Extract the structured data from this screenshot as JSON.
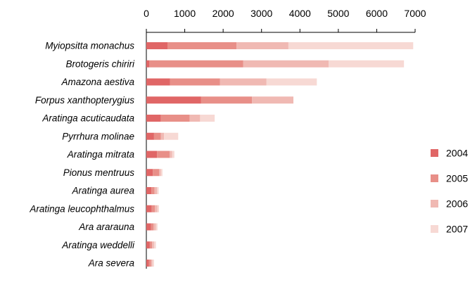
{
  "chart_data": {
    "type": "bar",
    "orientation": "horizontal",
    "stacked": true,
    "x_axis_position": "top",
    "xlim": [
      0,
      7000
    ],
    "x_ticks": [
      0,
      1000,
      2000,
      3000,
      4000,
      5000,
      6000,
      7000
    ],
    "x_tick_labels": [
      "0",
      "1000",
      "2000",
      "3000",
      "4000",
      "5000",
      "6000",
      "7000"
    ],
    "grid": false,
    "legend_position": "right",
    "categories": [
      "Myiopsitta monachus",
      "Brotogeris chiriri",
      "Amazona aestiva",
      "Forpus xanthopterygius",
      "Aratinga acuticaudata",
      "Pyrrhura molinae",
      "Aratinga mitrata",
      "Pionus mentruus",
      "Aratinga aurea",
      "Aratinga leucophthalmus",
      "Ara ararauna",
      "Aratinga weddelli",
      "Ara severa"
    ],
    "series": [
      {
        "name": "2004",
        "color": "#e06666",
        "values": [
          550,
          80,
          620,
          1420,
          380,
          200,
          280,
          170,
          130,
          140,
          120,
          90,
          70
        ]
      },
      {
        "name": "2005",
        "color": "#e88f88",
        "values": [
          1800,
          2440,
          1300,
          1330,
          750,
          180,
          330,
          160,
          80,
          80,
          70,
          60,
          50
        ]
      },
      {
        "name": "2006",
        "color": "#f0b9b3",
        "values": [
          1350,
          2230,
          1210,
          1080,
          270,
          80,
          60,
          50,
          70,
          70,
          60,
          50,
          40
        ]
      },
      {
        "name": "2007",
        "color": "#f7d9d4",
        "values": [
          3250,
          1960,
          1310,
          0,
          380,
          370,
          60,
          40,
          40,
          40,
          40,
          50,
          40
        ]
      }
    ]
  }
}
